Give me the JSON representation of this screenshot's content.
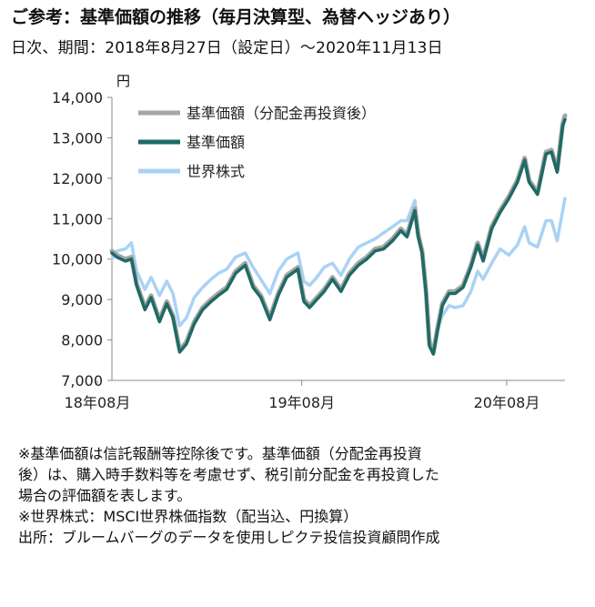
{
  "title": "ご参考：基準価額の推移（毎月決算型、為替ヘッジあり）",
  "subtitle": "日次、期間：2018年8月27日（設定日）～2020年11月13日",
  "unit": "円",
  "notes": [
    "※基準価額は信託報酬等控除後です。基準価額（分配金再投資",
    "後）は、購入時手数料等を考慮せず、税引前分配金を再投資した",
    "場合の評価額を表します。",
    "※世界株式：MSCI世界株価指数（配当込、円換算）",
    "出所：ブルームバーグのデータを使用しピクテ投信投資顧問作成"
  ],
  "colors": {
    "reinvested": "#a6a6a6",
    "nav": "#1e6b66",
    "world": "#a9d2f6",
    "axis": "#888888"
  },
  "chart_data": {
    "type": "line",
    "title": "",
    "xlabel": "",
    "ylabel": "円",
    "ylim": [
      7000,
      14000
    ],
    "yticks": [
      7000,
      8000,
      9000,
      10000,
      11000,
      12000,
      13000,
      14000
    ],
    "ytick_labels": [
      "7,000",
      "8,000",
      "9,000",
      "10,000",
      "11,000",
      "12,000",
      "13,000",
      "14,000"
    ],
    "xlim": [
      "2018-08-27",
      "2020-11-13"
    ],
    "xticks": [
      "2018-08-01",
      "2019-08-01",
      "2020-08-01"
    ],
    "xtick_labels": [
      "18年08月",
      "19年08月",
      "20年08月"
    ],
    "grid": false,
    "legend": "top-left",
    "series": [
      {
        "name": "基準価額（分配金再投資後）",
        "color": "#a6a6a6",
        "points": [
          [
            "2018-08-27",
            10200
          ],
          [
            "2018-09-05",
            10100
          ],
          [
            "2018-09-20",
            10000
          ],
          [
            "2018-10-01",
            10050
          ],
          [
            "2018-10-10",
            9400
          ],
          [
            "2018-10-25",
            8800
          ],
          [
            "2018-11-05",
            9100
          ],
          [
            "2018-11-20",
            8500
          ],
          [
            "2018-12-03",
            8950
          ],
          [
            "2018-12-14",
            8600
          ],
          [
            "2018-12-26",
            7750
          ],
          [
            "2019-01-07",
            7950
          ],
          [
            "2019-01-21",
            8450
          ],
          [
            "2019-02-05",
            8800
          ],
          [
            "2019-02-20",
            9000
          ],
          [
            "2019-03-05",
            9150
          ],
          [
            "2019-03-20",
            9300
          ],
          [
            "2019-04-05",
            9700
          ],
          [
            "2019-04-22",
            9900
          ],
          [
            "2019-05-06",
            9350
          ],
          [
            "2019-05-20",
            9100
          ],
          [
            "2019-06-05",
            8550
          ],
          [
            "2019-06-20",
            9150
          ],
          [
            "2019-07-05",
            9600
          ],
          [
            "2019-07-25",
            9800
          ],
          [
            "2019-08-05",
            9000
          ],
          [
            "2019-08-15",
            8850
          ],
          [
            "2019-08-28",
            9050
          ],
          [
            "2019-09-10",
            9250
          ],
          [
            "2019-09-25",
            9550
          ],
          [
            "2019-10-10",
            9250
          ],
          [
            "2019-10-25",
            9650
          ],
          [
            "2019-11-10",
            9900
          ],
          [
            "2019-11-25",
            10050
          ],
          [
            "2019-12-10",
            10250
          ],
          [
            "2019-12-25",
            10300
          ],
          [
            "2020-01-10",
            10500
          ],
          [
            "2020-01-25",
            10750
          ],
          [
            "2020-02-05",
            10600
          ],
          [
            "2020-02-19",
            11250
          ],
          [
            "2020-02-25",
            10600
          ],
          [
            "2020-03-03",
            10200
          ],
          [
            "2020-03-10",
            9200
          ],
          [
            "2020-03-16",
            7900
          ],
          [
            "2020-03-23",
            7700
          ],
          [
            "2020-03-30",
            8250
          ],
          [
            "2020-04-08",
            8900
          ],
          [
            "2020-04-20",
            9200
          ],
          [
            "2020-05-01",
            9200
          ],
          [
            "2020-05-15",
            9350
          ],
          [
            "2020-05-29",
            9850
          ],
          [
            "2020-06-10",
            10400
          ],
          [
            "2020-06-20",
            10000
          ],
          [
            "2020-07-05",
            10800
          ],
          [
            "2020-07-20",
            11200
          ],
          [
            "2020-08-05",
            11550
          ],
          [
            "2020-08-20",
            11950
          ],
          [
            "2020-09-02",
            12500
          ],
          [
            "2020-09-10",
            11950
          ],
          [
            "2020-09-25",
            11650
          ],
          [
            "2020-10-10",
            12650
          ],
          [
            "2020-10-20",
            12700
          ],
          [
            "2020-10-30",
            12200
          ],
          [
            "2020-11-09",
            13350
          ],
          [
            "2020-11-13",
            13550
          ]
        ]
      },
      {
        "name": "基準価額",
        "color": "#1e6b66",
        "points": [
          [
            "2018-08-27",
            10150
          ],
          [
            "2018-09-05",
            10050
          ],
          [
            "2018-09-20",
            9950
          ],
          [
            "2018-10-01",
            10000
          ],
          [
            "2018-10-10",
            9350
          ],
          [
            "2018-10-25",
            8750
          ],
          [
            "2018-11-05",
            9050
          ],
          [
            "2018-11-20",
            8450
          ],
          [
            "2018-12-03",
            8900
          ],
          [
            "2018-12-14",
            8550
          ],
          [
            "2018-12-26",
            7700
          ],
          [
            "2019-01-07",
            7900
          ],
          [
            "2019-01-21",
            8400
          ],
          [
            "2019-02-05",
            8750
          ],
          [
            "2019-02-20",
            8950
          ],
          [
            "2019-03-05",
            9100
          ],
          [
            "2019-03-20",
            9250
          ],
          [
            "2019-04-05",
            9650
          ],
          [
            "2019-04-22",
            9850
          ],
          [
            "2019-05-06",
            9300
          ],
          [
            "2019-05-20",
            9050
          ],
          [
            "2019-06-05",
            8500
          ],
          [
            "2019-06-20",
            9100
          ],
          [
            "2019-07-05",
            9550
          ],
          [
            "2019-07-25",
            9750
          ],
          [
            "2019-08-05",
            8950
          ],
          [
            "2019-08-15",
            8800
          ],
          [
            "2019-08-28",
            9000
          ],
          [
            "2019-09-10",
            9200
          ],
          [
            "2019-09-25",
            9500
          ],
          [
            "2019-10-10",
            9200
          ],
          [
            "2019-10-25",
            9600
          ],
          [
            "2019-11-10",
            9850
          ],
          [
            "2019-11-25",
            10000
          ],
          [
            "2019-12-10",
            10200
          ],
          [
            "2019-12-25",
            10250
          ],
          [
            "2020-01-10",
            10450
          ],
          [
            "2020-01-25",
            10700
          ],
          [
            "2020-02-05",
            10550
          ],
          [
            "2020-02-19",
            11200
          ],
          [
            "2020-02-25",
            10550
          ],
          [
            "2020-03-03",
            10150
          ],
          [
            "2020-03-10",
            9150
          ],
          [
            "2020-03-16",
            7850
          ],
          [
            "2020-03-23",
            7650
          ],
          [
            "2020-03-30",
            8200
          ],
          [
            "2020-04-08",
            8850
          ],
          [
            "2020-04-20",
            9150
          ],
          [
            "2020-05-01",
            9150
          ],
          [
            "2020-05-15",
            9300
          ],
          [
            "2020-05-29",
            9800
          ],
          [
            "2020-06-10",
            10350
          ],
          [
            "2020-06-20",
            9950
          ],
          [
            "2020-07-05",
            10750
          ],
          [
            "2020-07-20",
            11150
          ],
          [
            "2020-08-05",
            11500
          ],
          [
            "2020-08-20",
            11900
          ],
          [
            "2020-09-02",
            12450
          ],
          [
            "2020-09-10",
            11900
          ],
          [
            "2020-09-25",
            11600
          ],
          [
            "2020-10-10",
            12600
          ],
          [
            "2020-10-20",
            12650
          ],
          [
            "2020-10-30",
            12150
          ],
          [
            "2020-11-09",
            13300
          ],
          [
            "2020-11-13",
            13450
          ]
        ]
      },
      {
        "name": "世界株式",
        "color": "#a9d2f6",
        "points": [
          [
            "2018-08-27",
            10000
          ],
          [
            "2018-09-05",
            10200
          ],
          [
            "2018-09-20",
            10250
          ],
          [
            "2018-10-01",
            10400
          ],
          [
            "2018-10-10",
            9700
          ],
          [
            "2018-10-25",
            9250
          ],
          [
            "2018-11-05",
            9550
          ],
          [
            "2018-11-20",
            9100
          ],
          [
            "2018-12-03",
            9450
          ],
          [
            "2018-12-14",
            9150
          ],
          [
            "2018-12-26",
            8350
          ],
          [
            "2019-01-07",
            8550
          ],
          [
            "2019-01-21",
            9050
          ],
          [
            "2019-02-05",
            9300
          ],
          [
            "2019-02-20",
            9500
          ],
          [
            "2019-03-05",
            9650
          ],
          [
            "2019-03-20",
            9750
          ],
          [
            "2019-04-05",
            10050
          ],
          [
            "2019-04-22",
            10150
          ],
          [
            "2019-05-06",
            9800
          ],
          [
            "2019-05-20",
            9500
          ],
          [
            "2019-06-05",
            9150
          ],
          [
            "2019-06-20",
            9700
          ],
          [
            "2019-07-05",
            10000
          ],
          [
            "2019-07-25",
            10150
          ],
          [
            "2019-08-05",
            9450
          ],
          [
            "2019-08-15",
            9350
          ],
          [
            "2019-08-28",
            9550
          ],
          [
            "2019-09-10",
            9800
          ],
          [
            "2019-09-25",
            9900
          ],
          [
            "2019-10-10",
            9600
          ],
          [
            "2019-10-25",
            10000
          ],
          [
            "2019-11-10",
            10300
          ],
          [
            "2019-11-25",
            10400
          ],
          [
            "2019-12-10",
            10500
          ],
          [
            "2019-12-25",
            10650
          ],
          [
            "2020-01-10",
            10800
          ],
          [
            "2020-01-25",
            10950
          ],
          [
            "2020-02-05",
            10950
          ],
          [
            "2020-02-19",
            11450
          ],
          [
            "2020-02-25",
            10700
          ],
          [
            "2020-03-03",
            10200
          ],
          [
            "2020-03-10",
            9300
          ],
          [
            "2020-03-16",
            8050
          ],
          [
            "2020-03-23",
            7650
          ],
          [
            "2020-03-30",
            8250
          ],
          [
            "2020-04-08",
            8600
          ],
          [
            "2020-04-20",
            8850
          ],
          [
            "2020-05-01",
            8800
          ],
          [
            "2020-05-15",
            8850
          ],
          [
            "2020-05-29",
            9200
          ],
          [
            "2020-06-10",
            9700
          ],
          [
            "2020-06-20",
            9500
          ],
          [
            "2020-07-05",
            9900
          ],
          [
            "2020-07-20",
            10250
          ],
          [
            "2020-08-05",
            10100
          ],
          [
            "2020-08-20",
            10350
          ],
          [
            "2020-09-02",
            10800
          ],
          [
            "2020-09-10",
            10400
          ],
          [
            "2020-09-25",
            10300
          ],
          [
            "2020-10-10",
            10950
          ],
          [
            "2020-10-20",
            10950
          ],
          [
            "2020-10-30",
            10450
          ],
          [
            "2020-11-09",
            11200
          ],
          [
            "2020-11-13",
            11500
          ]
        ]
      }
    ]
  }
}
